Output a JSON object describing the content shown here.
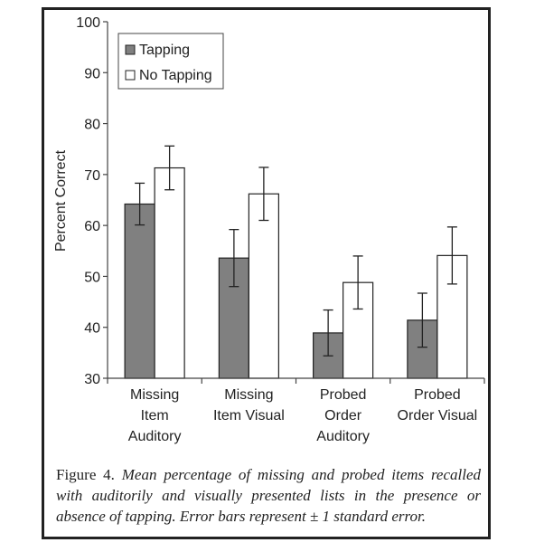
{
  "chart_data": {
    "type": "bar",
    "ylabel": "Percent Correct",
    "ylim": [
      30,
      100
    ],
    "yticks": [
      "30",
      "40",
      "50",
      "60",
      "70",
      "80",
      "90",
      "100"
    ],
    "categories": [
      [
        "Missing",
        "Item",
        "Auditory"
      ],
      [
        "Missing",
        "Item Visual"
      ],
      [
        "Probed",
        "Order",
        "Auditory"
      ],
      [
        "Probed",
        "Order Visual"
      ]
    ],
    "series": [
      {
        "name": "Tapping",
        "color": "#808080",
        "values": [
          64.2,
          53.6,
          38.9,
          41.4
        ],
        "error": [
          4.1,
          5.6,
          4.5,
          5.3
        ]
      },
      {
        "name": "No Tapping",
        "color": "#ffffff",
        "values": [
          71.3,
          66.2,
          48.8,
          54.1
        ],
        "error": [
          4.3,
          5.2,
          5.2,
          5.6
        ]
      }
    ],
    "legend_position": "top-left",
    "error_bars": "±1 standard error"
  },
  "caption": {
    "label": "Figure 4.",
    "text": "Mean percentage of missing and probed items recalled with auditorily and visually presented lists in the presence or absence of tapping. Error bars represent ± 1 standard error."
  }
}
